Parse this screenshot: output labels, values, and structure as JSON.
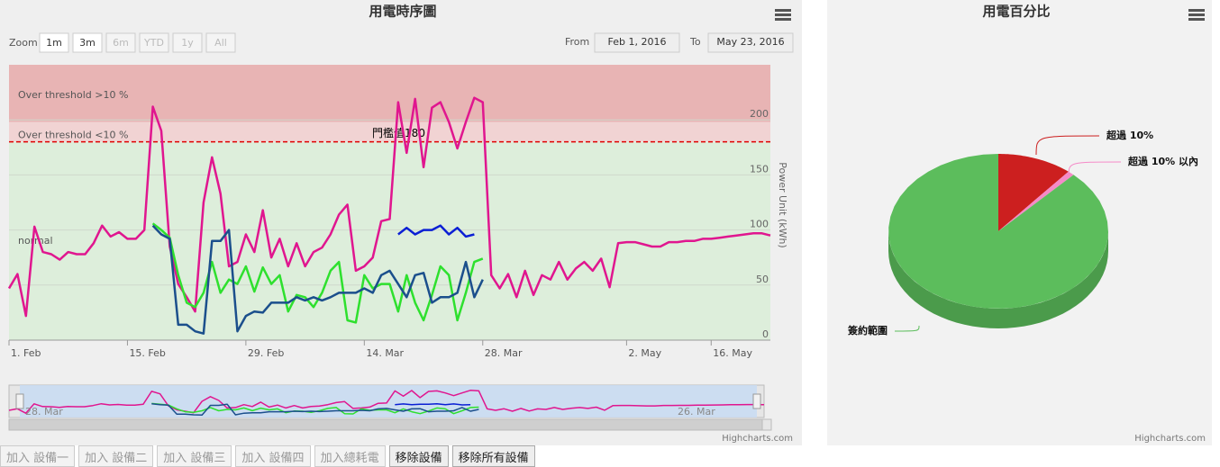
{
  "chart_data": [
    {
      "type": "line",
      "title": "用電時序圖",
      "categories": [
        "1. Feb",
        null,
        null,
        null,
        null,
        null,
        null,
        null,
        null,
        null,
        null,
        null,
        null,
        null,
        "15. Feb",
        null,
        null,
        null,
        null,
        null,
        null,
        null,
        null,
        null,
        null,
        null,
        null,
        null,
        "29. Feb",
        null,
        null,
        null,
        null,
        null,
        null,
        null,
        null,
        null,
        null,
        null,
        null,
        null,
        "14. Mar",
        null,
        null,
        null,
        null,
        null,
        null,
        null,
        null,
        null,
        null,
        null,
        null,
        null,
        "28. Mar",
        null,
        null,
        null,
        null,
        null,
        null,
        null,
        null,
        null,
        null,
        null,
        null,
        null,
        null,
        null,
        null,
        "2. May",
        null,
        null,
        null,
        null,
        null,
        null,
        null,
        null,
        null,
        "16. May",
        null,
        null,
        null,
        null,
        null,
        null,
        null
      ],
      "series": [
        {
          "color": "#e0168f",
          "values": [
            47,
            60,
            22,
            103,
            80,
            78,
            73,
            80,
            78,
            78,
            88,
            104,
            94,
            98,
            92,
            92,
            100,
            212,
            190,
            85,
            51,
            39,
            26,
            125,
            166,
            133,
            67,
            71,
            96,
            80,
            118,
            75,
            92,
            67,
            88,
            67,
            80,
            84,
            96,
            114,
            123,
            63,
            67,
            75,
            108,
            110,
            216,
            170,
            219,
            157,
            211,
            216,
            198,
            174,
            198,
            220,
            216,
            59,
            47,
            60,
            39,
            63,
            41,
            59,
            55,
            71,
            55,
            65,
            71,
            63,
            74,
            48,
            88,
            89,
            89,
            87,
            85,
            85,
            89,
            89,
            90,
            90,
            92,
            92,
            93,
            94,
            95,
            96,
            97,
            97,
            95
          ]
        },
        {
          "color": "#2ee02e",
          "values": [
            null,
            null,
            null,
            null,
            null,
            null,
            null,
            null,
            null,
            null,
            null,
            null,
            null,
            null,
            null,
            null,
            null,
            106,
            100,
            93,
            59,
            34,
            30,
            43,
            71,
            43,
            55,
            51,
            67,
            44,
            66,
            51,
            59,
            26,
            41,
            39,
            30,
            43,
            63,
            71,
            18,
            16,
            59,
            47,
            51,
            51,
            26,
            59,
            34,
            18,
            41,
            67,
            59,
            18,
            43,
            71,
            74,
            null,
            null,
            null,
            null,
            null,
            null,
            null,
            null,
            null,
            null,
            null,
            null,
            null,
            null,
            null,
            null,
            null,
            null,
            null,
            null,
            null,
            null,
            null,
            null,
            null,
            null,
            null,
            null,
            null,
            null,
            null,
            null,
            null,
            null
          ]
        },
        {
          "color": "#1b4f8c",
          "values": [
            null,
            null,
            null,
            null,
            null,
            null,
            null,
            null,
            null,
            null,
            null,
            null,
            null,
            null,
            null,
            null,
            null,
            104,
            96,
            92,
            14,
            14,
            8,
            6,
            90,
            90,
            100,
            8,
            22,
            26,
            25,
            34,
            34,
            34,
            39,
            36,
            39,
            36,
            39,
            43,
            43,
            43,
            47,
            43,
            59,
            63,
            51,
            39,
            59,
            61,
            34,
            39,
            39,
            43,
            71,
            39,
            55,
            null,
            null,
            null,
            null,
            null,
            null,
            null,
            null,
            null,
            null,
            null,
            null,
            null,
            null,
            null,
            null,
            null,
            null,
            null,
            null,
            null,
            null,
            null,
            null,
            null,
            null,
            null,
            null,
            null,
            null,
            null,
            null,
            null,
            null
          ]
        },
        {
          "color": "#0b1fd4",
          "values": [
            null,
            null,
            null,
            null,
            null,
            null,
            null,
            null,
            null,
            null,
            null,
            null,
            null,
            null,
            null,
            null,
            null,
            null,
            null,
            null,
            null,
            null,
            null,
            null,
            null,
            null,
            null,
            null,
            null,
            null,
            null,
            null,
            null,
            null,
            null,
            null,
            null,
            null,
            null,
            null,
            null,
            null,
            null,
            null,
            null,
            null,
            96,
            102,
            96,
            100,
            100,
            104,
            96,
            102,
            94,
            96,
            null,
            null,
            null,
            null,
            null,
            null,
            null,
            null,
            null,
            null,
            null,
            null,
            null,
            null,
            null,
            null,
            null,
            null,
            null,
            null,
            null,
            null,
            null,
            null,
            null,
            null,
            null,
            null,
            null,
            null,
            null,
            null,
            null,
            null,
            null
          ]
        }
      ],
      "ylim": [
        0,
        250
      ],
      "yticks": [
        0,
        50,
        100,
        150,
        200
      ],
      "y_axis_title": "Power Unit (kWh)",
      "grid": true,
      "plot_bands": [
        {
          "from": 198,
          "to": 250,
          "label": "Over threshold >10 %",
          "color": "#e8b4b4"
        },
        {
          "from": 180,
          "to": 198,
          "label": "Over threshold <10 %",
          "color": "#f1d3d3"
        },
        {
          "from": 0,
          "to": 180,
          "label": "normal",
          "color": "#ddeedb"
        }
      ],
      "plot_lines": [
        {
          "value": 180,
          "label": "門檻值180",
          "color": "#e00000"
        }
      ],
      "range_selector": {
        "zoom_label": "Zoom",
        "buttons": [
          {
            "label": "1m",
            "enabled": true
          },
          {
            "label": "3m",
            "enabled": true
          },
          {
            "label": "6m",
            "enabled": false
          },
          {
            "label": "YTD",
            "enabled": false
          },
          {
            "label": "1y",
            "enabled": false
          },
          {
            "label": "All",
            "enabled": false
          }
        ],
        "from_label": "From",
        "from": "Feb 1, 2016",
        "to_label": "To",
        "to": "May 23, 2016"
      },
      "navigator_labels": [
        "28. Mar",
        "26. Mar"
      ],
      "credits": "Highcharts.com"
    },
    {
      "type": "pie",
      "title": "用電百分比",
      "categories": [
        "超過 10%",
        "超過 10% 以內",
        "簽約範圍"
      ],
      "values": [
        11,
        1,
        88
      ],
      "colors": [
        "#cc1f1f",
        "#f58ac8",
        "#5cbd5c"
      ],
      "credits": "Highcharts.com"
    }
  ],
  "toolbar": {
    "buttons": [
      {
        "label": "加入 設備一",
        "enabled": false
      },
      {
        "label": "加入 設備二",
        "enabled": false
      },
      {
        "label": "加入 設備三",
        "enabled": false
      },
      {
        "label": "加入 設備四",
        "enabled": false
      },
      {
        "label": "加入總耗電",
        "enabled": false
      },
      {
        "label": "移除設備",
        "enabled": true
      },
      {
        "label": "移除所有設備",
        "enabled": true
      }
    ]
  }
}
